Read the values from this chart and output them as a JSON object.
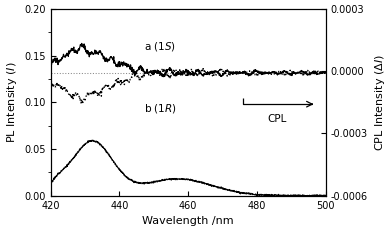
{
  "xlim": [
    420,
    500
  ],
  "pl_ylim": [
    0.0,
    0.2
  ],
  "cpl_ylim": [
    -0.0006,
    0.0003
  ],
  "pl_yticks": [
    0.0,
    0.05,
    0.1,
    0.15,
    0.2
  ],
  "cpl_yticks": [
    -0.0006,
    -0.0003,
    0.0,
    0.0003
  ],
  "xticks": [
    420,
    440,
    460,
    480,
    500
  ],
  "xlabel": "Wavelength /nm",
  "ylabel_left": "PL Intensity ($I$)",
  "ylabel_right": "CPL Intensity ($\\Delta I$)",
  "label_a": "a (1$S$)",
  "label_b": "b (1$R$)",
  "cpl_label": "CPL",
  "dotted_line_y": 0.1315,
  "background_color": "#ffffff",
  "line_color": "#000000",
  "seed": 12
}
